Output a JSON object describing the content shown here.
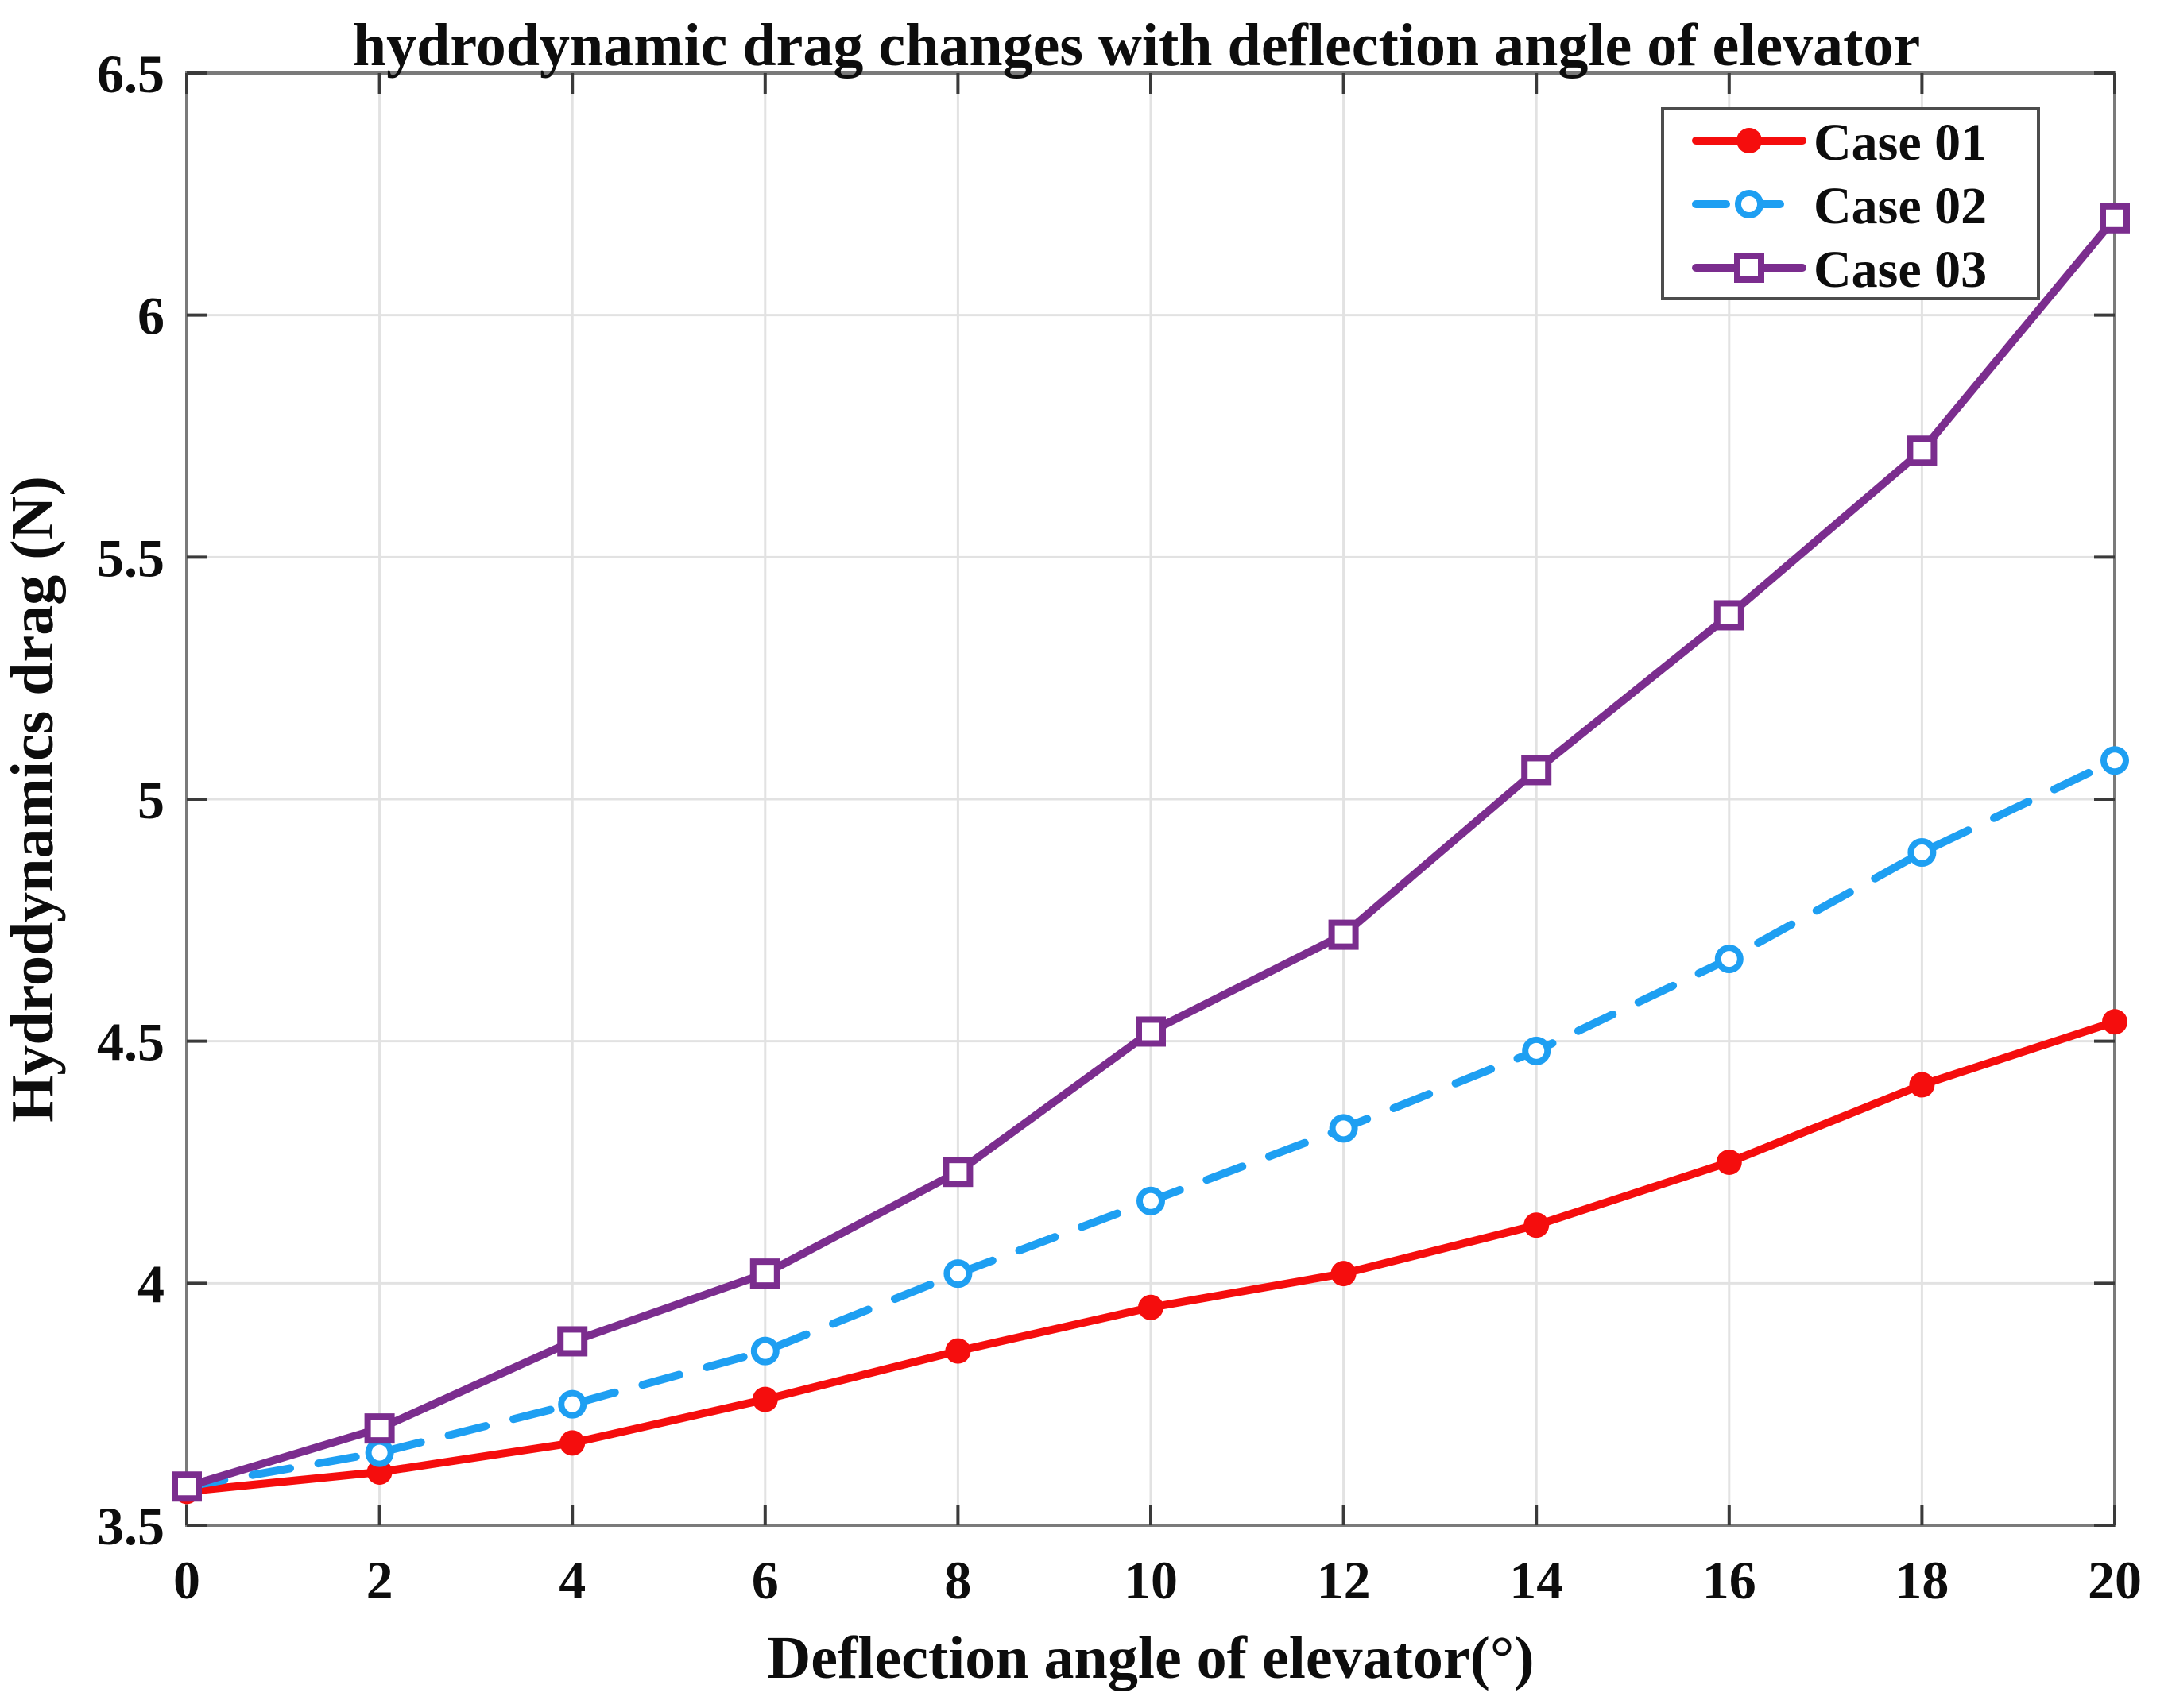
{
  "chart_data": {
    "type": "line",
    "title": "hydrodynamic drag changes with deflection angle of elevator",
    "xlabel": "Deflection angle of elevator(°)",
    "ylabel": "Hydrodynamics drag (N)",
    "xlim": [
      0,
      20
    ],
    "ylim": [
      3.5,
      6.5
    ],
    "x_ticks": [
      0,
      2,
      4,
      6,
      8,
      10,
      12,
      14,
      16,
      18,
      20
    ],
    "x_tick_labels": [
      "0",
      "2",
      "4",
      "6",
      "8",
      "10",
      "12",
      "14",
      "16",
      "18",
      "20"
    ],
    "y_ticks": [
      3.5,
      4,
      4.5,
      5,
      5.5,
      6,
      6.5
    ],
    "y_tick_labels": [
      "3.5",
      "4",
      "4.5",
      "5",
      "5.5",
      "6",
      "6.5"
    ],
    "grid": true,
    "legend_position": "top-right",
    "x": [
      0,
      2,
      4,
      6,
      8,
      10,
      12,
      14,
      16,
      18,
      20
    ],
    "series": [
      {
        "name": "Case 01",
        "color": "#f50d0d",
        "line_style": "solid",
        "marker": "filled-circle",
        "values": [
          3.57,
          3.61,
          3.67,
          3.76,
          3.86,
          3.95,
          4.02,
          4.12,
          4.25,
          4.41,
          4.54
        ]
      },
      {
        "name": "Case 02",
        "color": "#1e9ff2",
        "line_style": "dashed",
        "marker": "open-circle",
        "values": [
          3.58,
          3.65,
          3.75,
          3.86,
          4.02,
          4.17,
          4.32,
          4.48,
          4.67,
          4.89,
          5.08
        ]
      },
      {
        "name": "Case 03",
        "color": "#7b2d8e",
        "line_style": "solid",
        "marker": "open-square",
        "values": [
          3.58,
          3.7,
          3.88,
          4.02,
          4.23,
          4.52,
          4.72,
          5.06,
          5.38,
          5.72,
          6.2
        ]
      }
    ],
    "colors": {
      "grid": "#e2e2e2",
      "frame": "#7a7a7a",
      "tick": "#3a3a3a",
      "legend_border": "#4d4d4d",
      "background": "#ffffff"
    }
  }
}
